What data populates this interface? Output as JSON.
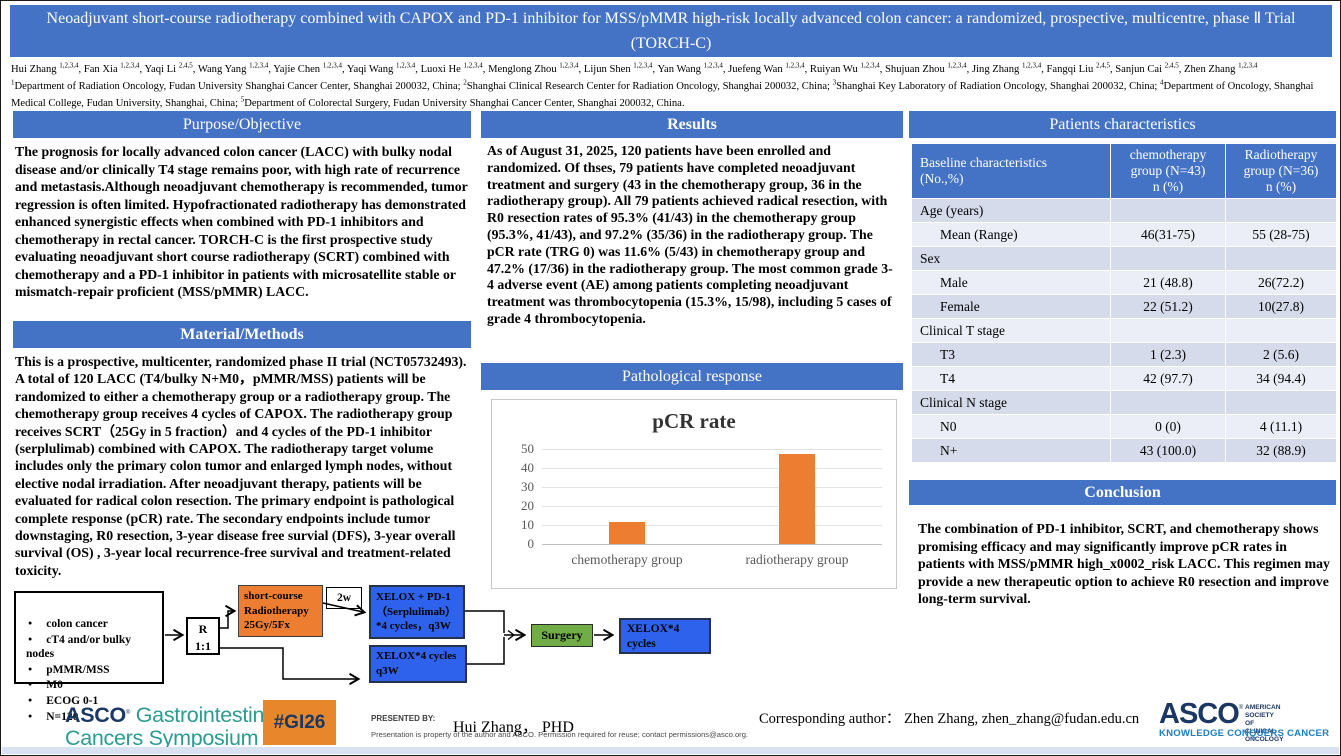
{
  "poster": {
    "title": "Neoadjuvant short-course radiotherapy combined with CAPOX and PD-1 inhibitor for MSS/pMMR high-risk locally advanced colon cancer: a randomized, prospective, multicentre, phase Ⅱ Trial (TORCH-C)",
    "authors": [
      {
        "name": "Hui Zhang",
        "sup": "1,2,3,4"
      },
      {
        "name": "Fan Xia",
        "sup": "1,2,3,4"
      },
      {
        "name": "Yaqi Li",
        "sup": "2,4,5"
      },
      {
        "name": "Wang Yang",
        "sup": "1,2,3,4"
      },
      {
        "name": "Yajie Chen",
        "sup": "1,2,3,4"
      },
      {
        "name": "Yaqi Wang",
        "sup": "1,2,3,4"
      },
      {
        "name": "Luoxi He",
        "sup": "1,2,3,4"
      },
      {
        "name": "Menglong Zhou",
        "sup": "1,2,3,4"
      },
      {
        "name": "Lijun Shen",
        "sup": "1,2,3,4"
      },
      {
        "name": "Yan Wang",
        "sup": "1,2,3,4"
      },
      {
        "name": "Juefeng Wan",
        "sup": "1,2,3,4"
      },
      {
        "name": "Ruiyan Wu",
        "sup": "1,2,3,4"
      },
      {
        "name": "Shujuan Zhou",
        "sup": "1,2,3,4"
      },
      {
        "name": "Jing Zhang",
        "sup": "1,2,3,4"
      },
      {
        "name": "Fangqi Liu",
        "sup": "2,4,5"
      },
      {
        "name": "Sanjun Cai",
        "sup": "2,4,5"
      },
      {
        "name": "Zhen Zhang",
        "sup": "1,2,3,4"
      }
    ],
    "affiliations": [
      {
        "sup": "1",
        "text": "Department of Radiation Oncology, Fudan University Shanghai Cancer Center, Shanghai 200032, China;"
      },
      {
        "sup": "2",
        "text": "Shanghai Clinical Research Center for Radiation Oncology, Shanghai 200032, China;"
      },
      {
        "sup": "3",
        "text": "Shanghai Key Laboratory of Radiation Oncology, Shanghai 200032, China;"
      },
      {
        "sup": "4",
        "text": "Department of Oncology, Shanghai Medical College, Fudan University, Shanghai, China;"
      },
      {
        "sup": "5",
        "text": "Department of Colorectal Surgery, Fudan University Shanghai Cancer Center, Shanghai 200032, China."
      }
    ]
  },
  "sections": {
    "purpose": {
      "title": "Purpose/Objective",
      "body": "The prognosis for locally advanced colon cancer (LACC) with bulky nodal disease and/or clinically T4 stage remains poor, with high rate of recurrence and metastasis.Although neoadjuvant chemotherapy is recommended, tumor regression is often limited. Hypofractionated radiotherapy has demonstrated enhanced synergistic effects when combined with PD-1 inhibitors and chemotherapy in rectal cancer. TORCH-C is the first prospective study evaluating neoadjuvant short course radiotherapy (SCRT) combined with chemotherapy and a PD-1 inhibitor in patients with microsatellite stable or mismatch-repair proficient (MSS/pMMR) LACC."
    },
    "methods": {
      "title": "Material/Methods",
      "body": "This is a prospective, multicenter, randomized phase II trial (NCT05732493). A total of 120 LACC (T4/bulky N+M0，pMMR/MSS) patients will be randomized to either a chemotherapy group or a radiotherapy group. The chemotherapy group receives 4 cycles of CAPOX. The radiotherapy group receives SCRT（25Gy in 5 fraction）and 4 cycles of the PD-1 inhibitor (serplulimab) combined with CAPOX. The radiotherapy target volume includes only the primary colon tumor and enlarged lymph nodes, without elective nodal irradiation. After neoadjuvant therapy, patients will be evaluated for radical colon resection. The primary endpoint is pathological complete response (pCR) rate. The secondary endpoints include tumor downstaging, R0 resection, 3-year disease free survial (DFS), 3-year overall survival (OS) , 3-year local recurrence-free survival and treatment-related toxicity."
    },
    "results": {
      "title": "Results",
      "body": "As of August 31, 2025, 120 patients have been enrolled and randomized. Of thses, 79 patients have completed neoadjuvant treatment and surgery (43 in the chemotherapy group, 36 in the radiotherapy group). All 79 patients achieved radical resection, with R0 resection rates of 95.3% (41/43) in the chemotherapy group (95.3%, 41/43), and 97.2% (35/36) in the radiotherapy group. The pCR rate (TRG 0) was 11.6% (5/43) in chemotherapy group and 47.2% (17/36) in the radiotherapy group. The most common grade 3-4 adverse event (AE) among patients completing neoadjuvant treatment was thrombocytopenia (15.3%, 15/98), including 5 cases of grade 4 thrombocytopenia."
    },
    "pathological": {
      "title": "Pathological response"
    },
    "patients": {
      "title": "Patients characteristics"
    },
    "conclusion": {
      "title": "Conclusion",
      "body": "The combination of PD-1 inhibitor, SCRT, and chemotherapy shows promising efficacy and may significantly improve pCR rates in patients with MSS/pMMR high_x0002_risk LACC. This regimen may provide a new therapeutic option to achieve R0 resection and improve long-term survival."
    }
  },
  "patients_table": {
    "columns": [
      "Baseline characteristics\n(No.,%)",
      "chemotherapy\ngroup  (N=43)\nn (%)",
      "Radiotherapy\ngroup (N=36)\nn (%)"
    ],
    "rows": [
      {
        "label": "Age (years)",
        "chemo": "",
        "radio": "",
        "indent": false
      },
      {
        "label": "Mean (Range)",
        "chemo": "46(31-75)",
        "radio": "55 (28-75)",
        "indent": true
      },
      {
        "label": "Sex",
        "chemo": "",
        "radio": "",
        "indent": false
      },
      {
        "label": "Male",
        "chemo": "21 (48.8)",
        "radio": "26(72.2)",
        "indent": true
      },
      {
        "label": "Female",
        "chemo": "22 (51.2)",
        "radio": "10(27.8)",
        "indent": true
      },
      {
        "label": "Clinical T stage",
        "chemo": "",
        "radio": "",
        "indent": false
      },
      {
        "label": "T3",
        "chemo": "1 (2.3)",
        "radio": "2 (5.6)",
        "indent": true
      },
      {
        "label": "T4",
        "chemo": "42 (97.7)",
        "radio": "34 (94.4)",
        "indent": true
      },
      {
        "label": "Clinical N stage",
        "chemo": "",
        "radio": "",
        "indent": false
      },
      {
        "label": "N0",
        "chemo": "0 (0)",
        "radio": "4 (11.1)",
        "indent": true
      },
      {
        "label": "N+",
        "chemo": "43 (100.0)",
        "radio": "32 (88.9)",
        "indent": true
      }
    ]
  },
  "chart_data": {
    "type": "bar",
    "title": "pCR rate",
    "categories": [
      "chemotherapy group",
      "radiotherapy group"
    ],
    "values": [
      11.6,
      47.2
    ],
    "ylim": [
      0,
      50
    ],
    "yticks": [
      0,
      10,
      20,
      30,
      40,
      50
    ],
    "xlabel": "",
    "ylabel": "",
    "grid": true,
    "legend": false,
    "bar_color": "#ED7D31"
  },
  "diagram": {
    "eligibility": [
      "colon cancer",
      "cT4 and/or bulky nodes",
      "pMMR/MSS",
      "M0",
      "ECOG 0-1",
      "N=120"
    ],
    "randomization": "R\n1:1",
    "rt_box": "short-course\nRadiotherapy\n25Gy/5Fx",
    "gap_label": "2w",
    "arm1_box": "XELOX + PD-1\n（Serplulimab）\n*4 cycles，q3W",
    "arm2_box": "XELOX*4 cycles\nq3W",
    "surgery_box": "Surgery",
    "adjuvant_box": "XELOX*4\ncycles"
  },
  "footer": {
    "gi_logo_asco": "ASCO",
    "gi_logo_line1": "Gastrointestinal",
    "gi_logo_line2": "Cancers Symposium",
    "badge": "#GI26",
    "presented_by_label": "PRESENTED BY:",
    "presenter": "Hui Zhang，  PHD",
    "disclaimer": "Presentation is property of the author and ASCO. Permission required for reuse; contact permissions@asco.org.",
    "corresponding": "Corresponding author：  Zhen Zhang,  zhen_zhang@fudan.edu.cn",
    "asco_logo_text": "ASCO",
    "asco_logo_society": "AMERICAN SOCIETY OF\nCLINICAL ONCOLOGY",
    "asco_logo_tagline": "KNOWLEDGE CONQUERS CANCER"
  },
  "colors": {
    "section_header_blue": "#4472C4",
    "table_band_dark": "#D5DBEA",
    "table_band_light": "#EBEEF6",
    "bar_orange": "#ED7D31",
    "diagram_blue": "#2E62EC",
    "diagram_green": "#70AD47",
    "badge_orange": "#E8862C",
    "asco_navy": "#1B3764",
    "gi_teal": "#2B9C8F",
    "tagline_blue": "#1F7EC0",
    "bottom_strip": "#D8E2F0"
  }
}
